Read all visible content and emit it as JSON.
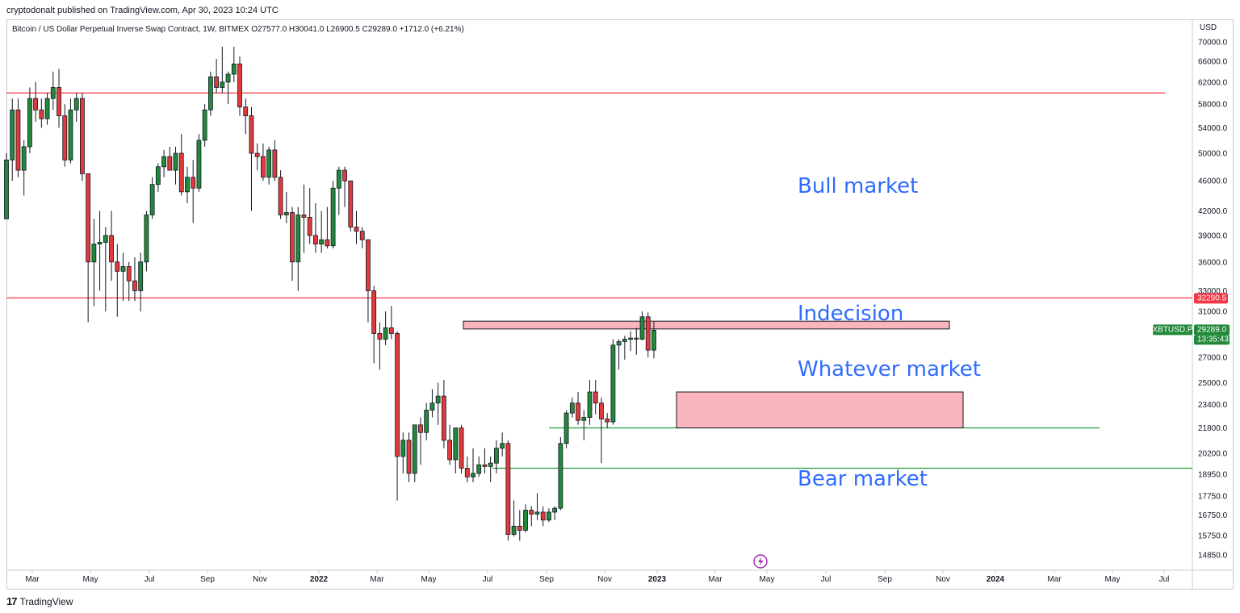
{
  "publisher_line": "cryptodonalt published on TradingView.com, Apr 30, 2023 10:24 UTC",
  "footer": {
    "brand": "TradingView"
  },
  "symbol_header": "Bitcoin / US Dollar Perpetual Inverse Swap Contract, 1W, BITMEX  O27577.0  H30041.0  L26900.5  C29289.0  +1712.0 (+6.21%)",
  "currency_label": "USD",
  "price_axis": {
    "ticks": [
      "70000.0",
      "66000.0",
      "62000.0",
      "58000.0",
      "54000.0",
      "50000.0",
      "46000.0",
      "42000.0",
      "39000.0",
      "36000.0",
      "33000.0",
      "31000.0",
      "27000.0",
      "25000.0",
      "23400.0",
      "21800.0",
      "20200.0",
      "18950.0",
      "17750.0",
      "16750.0",
      "15750.0",
      "14850.0"
    ],
    "tick_values": [
      70000,
      66000,
      62000,
      58000,
      54000,
      50000,
      46000,
      42000,
      39000,
      36000,
      33000,
      31000,
      27000,
      25000,
      23400,
      21800,
      20200,
      18950,
      17750,
      16750,
      15750,
      14850
    ]
  },
  "time_axis": {
    "labels": [
      {
        "text": "Mar",
        "bold": false
      },
      {
        "text": "May",
        "bold": false
      },
      {
        "text": "Jul",
        "bold": false
      },
      {
        "text": "Sep",
        "bold": false
      },
      {
        "text": "Nov",
        "bold": false
      },
      {
        "text": "2022",
        "bold": true
      },
      {
        "text": "Mar",
        "bold": false
      },
      {
        "text": "May",
        "bold": false
      },
      {
        "text": "Jul",
        "bold": false
      },
      {
        "text": "Sep",
        "bold": false
      },
      {
        "text": "Nov",
        "bold": false
      },
      {
        "text": "2023",
        "bold": true
      },
      {
        "text": "Mar",
        "bold": false
      },
      {
        "text": "May",
        "bold": false
      },
      {
        "text": "Jul",
        "bold": false
      },
      {
        "text": "Sep",
        "bold": false
      },
      {
        "text": "Nov",
        "bold": false
      },
      {
        "text": "2024",
        "bold": true
      },
      {
        "text": "Mar",
        "bold": false
      },
      {
        "text": "May",
        "bold": false
      },
      {
        "text": "Jul",
        "bold": false
      }
    ]
  },
  "price_tags": {
    "resistance": {
      "text": "32290.5",
      "color": "#f23645"
    },
    "symbol": {
      "text": "XBTUSD.P",
      "color": "#22893a"
    },
    "last": {
      "text": "29289.0",
      "color": "#22893a"
    },
    "countdown": {
      "text": "13:35:43",
      "color": "#22893a"
    }
  },
  "annotations": [
    {
      "text": "Bull market"
    },
    {
      "text": "Indecision"
    },
    {
      "text": "Whatever market"
    },
    {
      "text": "Bear market"
    }
  ],
  "colors": {
    "up": "#22893a",
    "down": "#e03a3a",
    "wick": "#131722",
    "resistance_line": "#f23645",
    "support_line": "#1e9c3a",
    "zone_fill": "#f9a8b0",
    "annotation": "#2f6bff"
  },
  "chart_data": {
    "type": "candlestick",
    "title": "Bitcoin / US Dollar Perpetual Inverse Swap Contract, 1W, BITMEX",
    "timeframe": "1W",
    "y_scale": "log",
    "ylim": [
      14000,
      72000
    ],
    "last_ohlc": {
      "open": 27577.0,
      "high": 30041.0,
      "low": 26900.5,
      "close": 29289.0,
      "change": 1712.0,
      "change_pct": 6.21
    },
    "horizontal_levels": [
      {
        "price": 60000,
        "color": "red"
      },
      {
        "price": 32290.5,
        "color": "red"
      },
      {
        "price": 21800,
        "color": "green"
      },
      {
        "price": 19300,
        "color": "green"
      }
    ],
    "zones": [
      {
        "label": "Indecision",
        "price_low": 29400,
        "price_high": 30100
      },
      {
        "label": "Whatever market",
        "price_low": 21800,
        "price_high": 24300
      }
    ],
    "candles": [
      [
        41000,
        50000,
        41000,
        49000
      ],
      [
        49000,
        59000,
        46000,
        57000
      ],
      [
        57000,
        59000,
        46500,
        47500
      ],
      [
        47500,
        52000,
        44000,
        51000
      ],
      [
        51000,
        61000,
        50000,
        59000
      ],
      [
        59000,
        62000,
        55000,
        57000
      ],
      [
        57000,
        59000,
        54000,
        55500
      ],
      [
        55500,
        60000,
        54500,
        59000
      ],
      [
        59000,
        64000,
        57000,
        61000
      ],
      [
        61000,
        64500,
        54000,
        56000
      ],
      [
        56000,
        58000,
        48000,
        49000
      ],
      [
        49000,
        59000,
        48500,
        57000
      ],
      [
        57000,
        60000,
        55000,
        59000
      ],
      [
        59000,
        60000,
        46000,
        47000
      ],
      [
        47000,
        47000,
        30000,
        36000
      ],
      [
        36000,
        41000,
        31500,
        38000
      ],
      [
        38000,
        42000,
        33000,
        38200
      ],
      [
        38200,
        40000,
        31000,
        39000
      ],
      [
        39000,
        42000,
        34000,
        36000
      ],
      [
        36000,
        38000,
        30500,
        35000
      ],
      [
        35000,
        37000,
        32000,
        35500
      ],
      [
        35500,
        36000,
        32000,
        34000
      ],
      [
        34000,
        36500,
        32000,
        33000
      ],
      [
        33000,
        37000,
        31000,
        36000
      ],
      [
        36000,
        42000,
        35000,
        41500
      ],
      [
        41500,
        46500,
        41000,
        45500
      ],
      [
        45500,
        48500,
        44500,
        48000
      ],
      [
        48000,
        50500,
        46500,
        49500
      ],
      [
        49500,
        51000,
        47500,
        47500
      ],
      [
        47500,
        51000,
        45500,
        50000
      ],
      [
        50000,
        53000,
        44000,
        44500
      ],
      [
        44500,
        48000,
        43000,
        46500
      ],
      [
        46500,
        49000,
        40500,
        45000
      ],
      [
        45000,
        53000,
        44500,
        52000
      ],
      [
        52000,
        58000,
        51000,
        57000
      ],
      [
        57000,
        64000,
        56000,
        63000
      ],
      [
        63000,
        66500,
        60000,
        61000
      ],
      [
        61000,
        69000,
        60000,
        62000
      ],
      [
        62000,
        64000,
        58000,
        63500
      ],
      [
        63500,
        69000,
        62000,
        65500
      ],
      [
        65500,
        67000,
        56000,
        57500
      ],
      [
        57500,
        59000,
        53000,
        56000
      ],
      [
        56000,
        57500,
        42000,
        50000
      ],
      [
        50000,
        51500,
        47500,
        49500
      ],
      [
        49500,
        51500,
        46000,
        46500
      ],
      [
        46500,
        51000,
        45500,
        50500
      ],
      [
        50500,
        52000,
        46000,
        46500
      ],
      [
        46500,
        47500,
        41000,
        41500
      ],
      [
        41500,
        44500,
        40500,
        41800
      ],
      [
        41800,
        42500,
        34000,
        36000
      ],
      [
        36000,
        42500,
        33000,
        41500
      ],
      [
        41500,
        45500,
        37000,
        41200
      ],
      [
        41200,
        45000,
        38000,
        39000
      ],
      [
        39000,
        43000,
        37000,
        38000
      ],
      [
        38000,
        42000,
        37000,
        38500
      ],
      [
        38500,
        42500,
        37500,
        37800
      ],
      [
        37800,
        46000,
        37500,
        45000
      ],
      [
        45000,
        48000,
        41500,
        47500
      ],
      [
        47500,
        48000,
        42500,
        46000
      ],
      [
        46000,
        46000,
        39500,
        40000
      ],
      [
        40000,
        42000,
        38000,
        39500
      ],
      [
        39500,
        40000,
        37500,
        38500
      ],
      [
        38500,
        38500,
        30000,
        33000
      ],
      [
        33000,
        33500,
        26500,
        29000
      ],
      [
        29000,
        30000,
        26000,
        28500
      ],
      [
        28500,
        31000,
        28000,
        29500
      ],
      [
        29500,
        31500,
        28500,
        29000
      ],
      [
        29000,
        29200,
        17500,
        20000
      ],
      [
        20000,
        21500,
        19000,
        21000
      ],
      [
        21000,
        21500,
        18500,
        19000
      ],
      [
        19000,
        22000,
        18500,
        22000
      ],
      [
        22000,
        22500,
        19500,
        21500
      ],
      [
        21500,
        23500,
        21000,
        23000
      ],
      [
        23000,
        24500,
        22500,
        23500
      ],
      [
        23500,
        25000,
        22000,
        24000
      ],
      [
        24000,
        25200,
        20500,
        21000
      ],
      [
        21000,
        22000,
        19500,
        19800
      ],
      [
        19800,
        21500,
        19000,
        21800
      ],
      [
        21800,
        22000,
        19000,
        19300
      ],
      [
        19300,
        20000,
        18500,
        18800
      ],
      [
        18800,
        20500,
        18500,
        19000
      ],
      [
        19000,
        20000,
        18800,
        19500
      ],
      [
        19500,
        20500,
        19000,
        19400
      ],
      [
        19400,
        20000,
        18500,
        19600
      ],
      [
        19600,
        21000,
        19000,
        20500
      ],
      [
        20500,
        21500,
        20000,
        20800
      ],
      [
        20800,
        21000,
        15500,
        15800
      ],
      [
        15800,
        17500,
        15700,
        16200
      ],
      [
        16200,
        17000,
        15500,
        16000
      ],
      [
        16000,
        17300,
        15900,
        17000
      ],
      [
        17000,
        17200,
        16200,
        16800
      ],
      [
        16800,
        17900,
        16500,
        16900
      ],
      [
        16900,
        17200,
        16200,
        16500
      ],
      [
        16500,
        17100,
        16400,
        16900
      ],
      [
        16900,
        17200,
        16500,
        17100
      ],
      [
        17100,
        21200,
        17000,
        20800
      ],
      [
        20800,
        23000,
        20500,
        22800
      ],
      [
        22800,
        23900,
        22500,
        23500
      ],
      [
        23500,
        24300,
        22000,
        22300
      ],
      [
        22300,
        23000,
        21000,
        22500
      ],
      [
        22500,
        25200,
        22000,
        24300
      ],
      [
        24300,
        25200,
        22700,
        23500
      ],
      [
        23500,
        23900,
        19600,
        22400
      ],
      [
        22400,
        22800,
        21800,
        22200
      ],
      [
        22200,
        28500,
        22000,
        28000
      ],
      [
        28000,
        28500,
        26000,
        28300
      ],
      [
        28300,
        28800,
        26800,
        28500
      ],
      [
        28500,
        29200,
        27500,
        28600
      ],
      [
        28600,
        29500,
        27200,
        28500
      ],
      [
        28500,
        31000,
        28400,
        30500
      ],
      [
        30500,
        30900,
        27000,
        27577
      ],
      [
        27577,
        30041,
        26900.5,
        29289
      ]
    ]
  }
}
